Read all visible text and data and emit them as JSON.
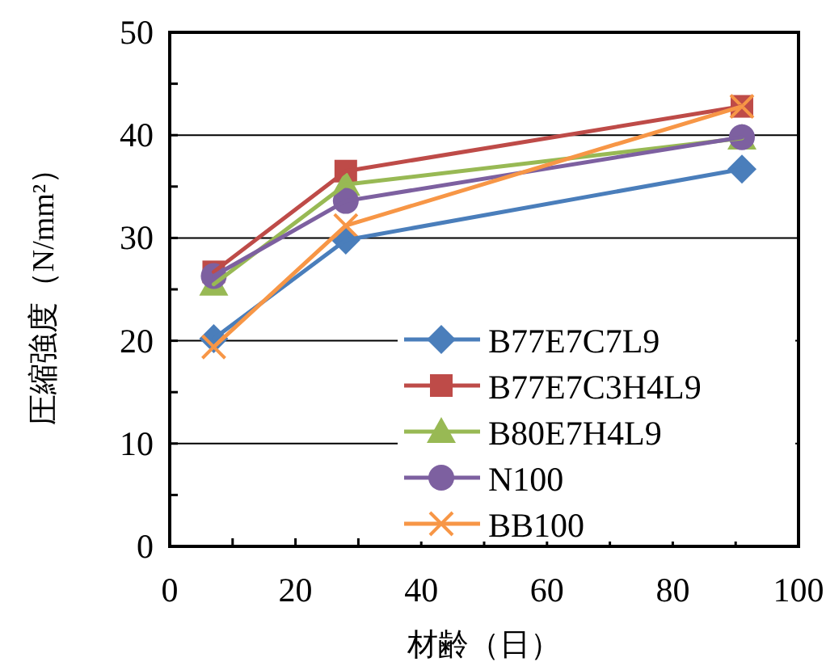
{
  "chart_data": {
    "type": "line",
    "xlabel": "材齢（日）",
    "ylabel": "圧縮強度（N/mm²）",
    "x": [
      7,
      28,
      91
    ],
    "series": [
      {
        "name": "B77E7C7L9",
        "color": "#4a7ebb",
        "marker": "diamond",
        "values": [
          20.2,
          29.8,
          36.7
        ]
      },
      {
        "name": "B77E7C3H4L9",
        "color": "#be4b48",
        "marker": "square",
        "values": [
          26.7,
          36.5,
          42.8
        ]
      },
      {
        "name": "B80E7H4L9",
        "color": "#98b954",
        "marker": "triangle",
        "values": [
          25.5,
          35.2,
          39.7
        ]
      },
      {
        "name": "N100",
        "color": "#7d60a0",
        "marker": "circle",
        "values": [
          26.3,
          33.6,
          39.8
        ]
      },
      {
        "name": "BB100",
        "color": "#f79646",
        "marker": "cross",
        "values": [
          19.4,
          31.2,
          42.8
        ]
      }
    ],
    "xlim": [
      0,
      100
    ],
    "xticks": [
      0,
      {
        "value": 10,
        "label": null
      },
      20,
      {
        "value": 30,
        "label": null
      },
      40,
      {
        "value": 50,
        "label": null
      },
      60,
      {
        "value": 70,
        "label": null
      },
      80,
      {
        "value": 90,
        "label": null
      },
      100
    ],
    "ylim": [
      0,
      50
    ],
    "yticks": [
      0,
      {
        "value": 5,
        "label": null
      },
      10,
      {
        "value": 15,
        "label": null
      },
      20,
      {
        "value": 25,
        "label": null
      },
      30,
      {
        "value": 35,
        "label": null
      },
      40,
      {
        "value": 45,
        "label": null
      },
      50
    ],
    "grid": "y",
    "legend": "bottom right",
    "line_style": "solid"
  }
}
